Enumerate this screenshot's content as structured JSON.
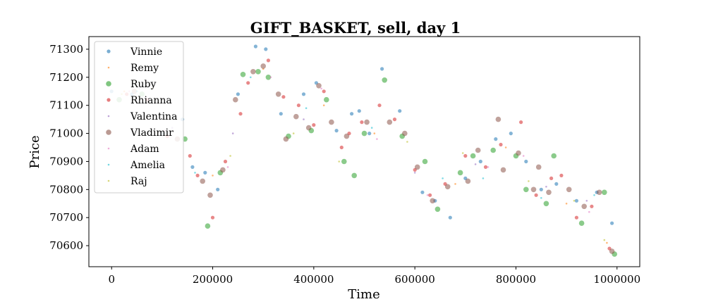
{
  "chart_data": {
    "type": "scatter",
    "title": "GIFT_BASKET, sell, day 1",
    "xlabel": "Time",
    "ylabel": "Price",
    "xlim": [
      -45000,
      1045000
    ],
    "ylim": [
      70525,
      71345
    ],
    "xticks": [
      0,
      200000,
      400000,
      600000,
      800000,
      1000000
    ],
    "xtick_labels": [
      "0",
      "200000",
      "400000",
      "600000",
      "800000",
      "1000000"
    ],
    "yticks": [
      70600,
      70700,
      70800,
      70900,
      71000,
      71100,
      71200,
      71300
    ],
    "ytick_labels": [
      "70600",
      "70700",
      "70800",
      "70900",
      "71000",
      "71100",
      "71200",
      "71300"
    ],
    "grid": false,
    "legend_position": "top-left",
    "series": [
      {
        "name": "Vinnie",
        "color": "#1f77b4",
        "marker_size": "medium",
        "points": [
          [
            0,
            71150
          ],
          [
            40000,
            71140
          ],
          [
            100000,
            71000
          ],
          [
            140000,
            71050
          ],
          [
            160000,
            70880
          ],
          [
            185000,
            70860
          ],
          [
            210000,
            70800
          ],
          [
            250000,
            71140
          ],
          [
            285000,
            71310
          ],
          [
            305000,
            71300
          ],
          [
            335000,
            71070
          ],
          [
            380000,
            71140
          ],
          [
            405000,
            71180
          ],
          [
            445000,
            71010
          ],
          [
            475000,
            71070
          ],
          [
            490000,
            71080
          ],
          [
            510000,
            71000
          ],
          [
            535000,
            71230
          ],
          [
            570000,
            71080
          ],
          [
            615000,
            70790
          ],
          [
            640000,
            70760
          ],
          [
            670000,
            70700
          ],
          [
            700000,
            70840
          ],
          [
            730000,
            70900
          ],
          [
            760000,
            70980
          ],
          [
            790000,
            71000
          ],
          [
            820000,
            70900
          ],
          [
            850000,
            70800
          ],
          [
            880000,
            70820
          ],
          [
            920000,
            70760
          ],
          [
            960000,
            70790
          ],
          [
            990000,
            70680
          ]
        ]
      },
      {
        "name": "Remy",
        "color": "#ff7f0e",
        "marker_size": "small",
        "points": [
          [
            25000,
            71150
          ],
          [
            90000,
            71000
          ],
          [
            200000,
            70850
          ],
          [
            300000,
            71230
          ],
          [
            420000,
            71100
          ],
          [
            520000,
            71000
          ],
          [
            680000,
            70820
          ],
          [
            780000,
            70950
          ],
          [
            900000,
            70750
          ],
          [
            980000,
            70610
          ]
        ]
      },
      {
        "name": "Ruby",
        "color": "#2ca02c",
        "marker_size": "large",
        "points": [
          [
            15000,
            71120
          ],
          [
            60000,
            71140
          ],
          [
            145000,
            70980
          ],
          [
            190000,
            70670
          ],
          [
            215000,
            70860
          ],
          [
            260000,
            71210
          ],
          [
            290000,
            71220
          ],
          [
            310000,
            71200
          ],
          [
            350000,
            70990
          ],
          [
            395000,
            71010
          ],
          [
            425000,
            71120
          ],
          [
            460000,
            70900
          ],
          [
            480000,
            70850
          ],
          [
            500000,
            71000
          ],
          [
            540000,
            71190
          ],
          [
            575000,
            70990
          ],
          [
            620000,
            70900
          ],
          [
            645000,
            70730
          ],
          [
            690000,
            70860
          ],
          [
            715000,
            70920
          ],
          [
            755000,
            70940
          ],
          [
            800000,
            70920
          ],
          [
            820000,
            70800
          ],
          [
            860000,
            70750
          ],
          [
            875000,
            70920
          ],
          [
            930000,
            70680
          ],
          [
            975000,
            70790
          ],
          [
            995000,
            70570
          ]
        ]
      },
      {
        "name": "Rhianna",
        "color": "#d62728",
        "marker_size": "medium",
        "points": [
          [
            30000,
            71140
          ],
          [
            70000,
            71120
          ],
          [
            110000,
            70990
          ],
          [
            155000,
            70920
          ],
          [
            170000,
            70850
          ],
          [
            200000,
            70700
          ],
          [
            225000,
            70900
          ],
          [
            255000,
            71070
          ],
          [
            270000,
            71180
          ],
          [
            310000,
            71260
          ],
          [
            340000,
            71130
          ],
          [
            370000,
            71100
          ],
          [
            400000,
            71030
          ],
          [
            420000,
            71150
          ],
          [
            455000,
            70950
          ],
          [
            470000,
            71000
          ],
          [
            495000,
            71040
          ],
          [
            530000,
            71100
          ],
          [
            560000,
            71050
          ],
          [
            600000,
            70870
          ],
          [
            630000,
            70780
          ],
          [
            660000,
            70820
          ],
          [
            700000,
            70920
          ],
          [
            740000,
            70880
          ],
          [
            770000,
            70960
          ],
          [
            810000,
            71040
          ],
          [
            840000,
            70780
          ],
          [
            870000,
            70840
          ],
          [
            890000,
            70850
          ],
          [
            920000,
            70700
          ],
          [
            950000,
            70740
          ],
          [
            985000,
            70590
          ]
        ]
      },
      {
        "name": "Valentina",
        "color": "#9467bd",
        "marker_size": "small",
        "points": [
          [
            55000,
            71160
          ],
          [
            120000,
            71020
          ],
          [
            240000,
            71000
          ],
          [
            380000,
            71050
          ],
          [
            600000,
            70860
          ],
          [
            720000,
            70890
          ],
          [
            860000,
            70810
          ],
          [
            940000,
            70760
          ]
        ]
      },
      {
        "name": "Vladimir",
        "color": "#8c564b",
        "marker_size": "large",
        "points": [
          [
            45000,
            71150
          ],
          [
            130000,
            70980
          ],
          [
            180000,
            70830
          ],
          [
            195000,
            70780
          ],
          [
            220000,
            70870
          ],
          [
            245000,
            71120
          ],
          [
            280000,
            71220
          ],
          [
            300000,
            71240
          ],
          [
            330000,
            71140
          ],
          [
            345000,
            70980
          ],
          [
            365000,
            71060
          ],
          [
            390000,
            71020
          ],
          [
            410000,
            71170
          ],
          [
            435000,
            71040
          ],
          [
            465000,
            70990
          ],
          [
            505000,
            71040
          ],
          [
            550000,
            71040
          ],
          [
            580000,
            71000
          ],
          [
            605000,
            70880
          ],
          [
            635000,
            70760
          ],
          [
            665000,
            70810
          ],
          [
            705000,
            70830
          ],
          [
            725000,
            70940
          ],
          [
            765000,
            71050
          ],
          [
            775000,
            70870
          ],
          [
            805000,
            70930
          ],
          [
            835000,
            70800
          ],
          [
            845000,
            70880
          ],
          [
            865000,
            70790
          ],
          [
            905000,
            70800
          ],
          [
            935000,
            70740
          ],
          [
            965000,
            70790
          ],
          [
            990000,
            70580
          ]
        ]
      },
      {
        "name": "Adam",
        "color": "#e377c2",
        "marker_size": "small",
        "points": [
          [
            35000,
            71150
          ],
          [
            105000,
            71010
          ],
          [
            230000,
            70880
          ],
          [
            315000,
            71200
          ],
          [
            415000,
            71160
          ],
          [
            525000,
            70980
          ],
          [
            625000,
            70780
          ],
          [
            745000,
            70880
          ],
          [
            815000,
            70920
          ],
          [
            945000,
            70720
          ]
        ]
      },
      {
        "name": "Amelia",
        "color": "#17becf",
        "marker_size": "small",
        "points": [
          [
            50000,
            71150
          ],
          [
            165000,
            70860
          ],
          [
            275000,
            71200
          ],
          [
            385000,
            71090
          ],
          [
            515000,
            71020
          ],
          [
            655000,
            70840
          ],
          [
            735000,
            70840
          ],
          [
            850000,
            70770
          ],
          [
            955000,
            70780
          ]
        ]
      },
      {
        "name": "Raj",
        "color": "#bcbd22",
        "marker_size": "small",
        "points": [
          [
            20000,
            71140
          ],
          [
            80000,
            71160
          ],
          [
            235000,
            70920
          ],
          [
            360000,
            71000
          ],
          [
            450000,
            70900
          ],
          [
            585000,
            70970
          ],
          [
            695000,
            70930
          ],
          [
            825000,
            70830
          ],
          [
            915000,
            70760
          ],
          [
            975000,
            70620
          ]
        ]
      }
    ]
  }
}
